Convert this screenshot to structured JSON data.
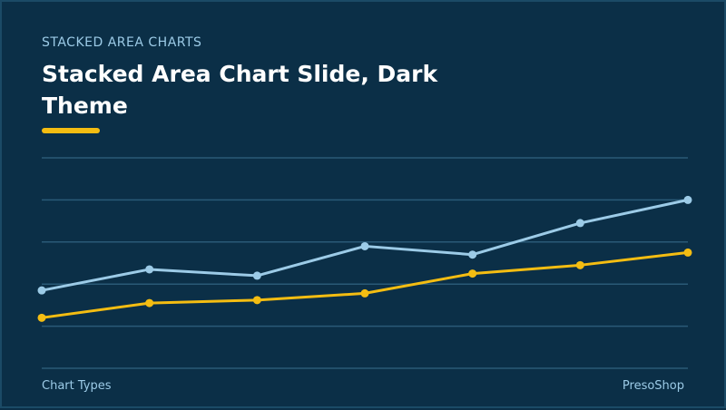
{
  "slide": {
    "kicker": "STACKED AREA CHARTS",
    "title": "Stacked Area Chart Slide, Dark Theme",
    "footer_left": "Chart Types",
    "footer_right": "PresoShop"
  },
  "colors": {
    "background": "#0b2f47",
    "gridline": "#2a5a77",
    "series_light": "#9ccbe7",
    "series_yellow": "#f4bd12",
    "title": "#ffffff"
  },
  "chart_data": {
    "type": "line",
    "title": "",
    "xlabel": "",
    "ylabel": "",
    "ylim": [
      0,
      5
    ],
    "grid": true,
    "legend": "none",
    "x": [
      1,
      2,
      3,
      4,
      5,
      6,
      7
    ],
    "series": [
      {
        "values": [
          1.85,
          2.35,
          2.2,
          2.9,
          2.7,
          3.45,
          4.0
        ],
        "color": "#9ccbe7"
      },
      {
        "values": [
          1.2,
          1.55,
          1.62,
          1.78,
          2.25,
          2.45,
          2.75
        ],
        "color": "#f4bd12"
      }
    ]
  }
}
